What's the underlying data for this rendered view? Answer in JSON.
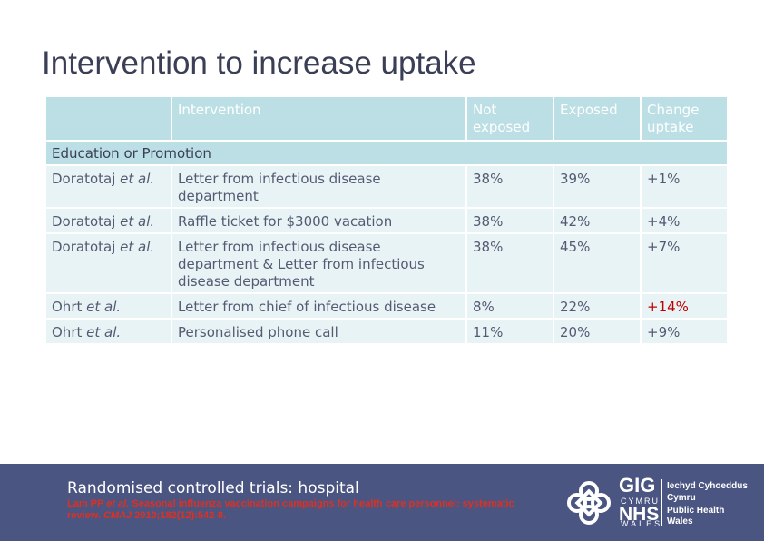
{
  "title": "Intervention to increase uptake",
  "table": {
    "headers": [
      "",
      "Intervention",
      "Not exposed",
      "Exposed",
      "Change uptake"
    ],
    "section": "Education or Promotion",
    "rows": [
      {
        "author": "Doratotaj",
        "etal": "et al.",
        "intervention": "Letter from infectious disease department",
        "not_exposed": "38%",
        "exposed": "39%",
        "change": "+1%"
      },
      {
        "author": "Doratotaj",
        "etal": "et al.",
        "intervention": "Raffle ticket for $3000 vacation",
        "not_exposed": "38%",
        "exposed": "42%",
        "change": "+4%"
      },
      {
        "author": "Doratotaj",
        "etal": "et al.",
        "intervention": "Letter from infectious disease department & Letter from infectious disease department",
        "not_exposed": "38%",
        "exposed": "45%",
        "change": "+7%"
      },
      {
        "author": "Ohrt",
        "etal": "et al.",
        "intervention": "Letter from chief of infectious disease",
        "not_exposed": "8%",
        "exposed": "22%",
        "change": "+14%"
      },
      {
        "author": "Ohrt",
        "etal": "et al.",
        "intervention": "Personalised phone call",
        "not_exposed": "11%",
        "exposed": "20%",
        "change": "+9%"
      }
    ]
  },
  "footer": {
    "heading": "Randomised controlled trials: hospital",
    "ref_author": "Lam PP",
    "ref_etal": "et al.",
    "ref_title": "Seasonal influenza vaccination campaigns for health care personnel: systematic review.",
    "ref_journal": "CMAJ",
    "ref_citation": "2010;182(12):542-8."
  },
  "logo": {
    "gig": "GIG",
    "cymru": "CYMRU",
    "nhs": "NHS",
    "wales": "WALES",
    "line1": "Iechyd Cyhoeddus",
    "line2": "Cymru",
    "line3": "Public Health",
    "line4": "Wales"
  },
  "colors": {
    "header_bg": "#bcdfe5",
    "row_bg": "#e8f3f5",
    "banner_bg": "#4a5582",
    "highlight": "#c00000"
  }
}
